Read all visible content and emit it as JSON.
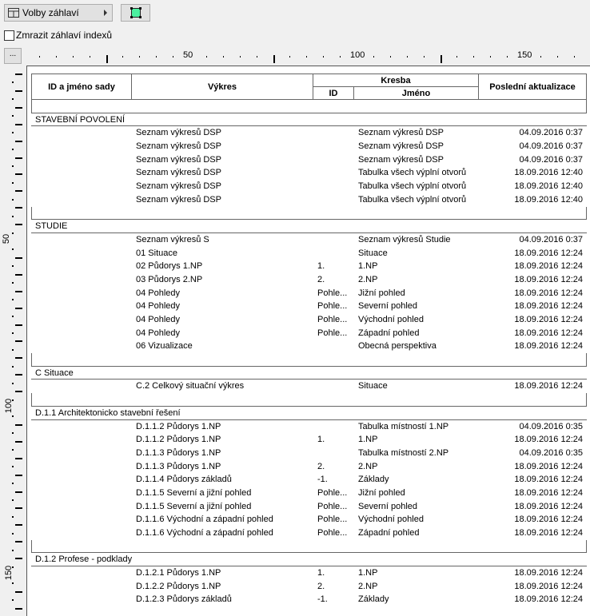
{
  "toolbar": {
    "options_label": "Volby záhlaví",
    "freeze_label": "Zmrazit záhlaví indexů",
    "freeze_checked": false,
    "more_label": "..."
  },
  "ruler": {
    "h_labels": [
      "50",
      "100",
      "150"
    ],
    "v_labels": [
      "50",
      "100",
      "150"
    ]
  },
  "header": {
    "set": "ID a jméno sady",
    "drawing": "Výkres",
    "layout": "Kresba",
    "layout_id": "ID",
    "layout_name": "Jméno",
    "updated": "Poslední aktualizace"
  },
  "sections": [
    {
      "title": "STAVEBNÍ POVOLENÍ",
      "rows": [
        [
          "Seznam výkresů DSP",
          "",
          "Seznam výkresů DSP",
          "04.09.2016 0:37"
        ],
        [
          "Seznam výkresů DSP",
          "",
          "Seznam výkresů DSP",
          "04.09.2016 0:37"
        ],
        [
          "Seznam výkresů DSP",
          "",
          "Seznam výkresů DSP",
          "04.09.2016 0:37"
        ],
        [
          "Seznam výkresů DSP",
          "",
          "Tabulka všech výplní otvorů",
          "18.09.2016 12:40"
        ],
        [
          "Seznam výkresů DSP",
          "",
          "Tabulka všech výplní otvorů",
          "18.09.2016 12:40"
        ],
        [
          "Seznam výkresů DSP",
          "",
          "Tabulka všech výplní otvorů",
          "18.09.2016 12:40"
        ]
      ]
    },
    {
      "title": "STUDIE",
      "rows": [
        [
          "Seznam výkresů S",
          "",
          "Seznam výkresů Studie",
          "04.09.2016 0:37"
        ],
        [
          "01 Situace",
          "",
          "Situace",
          "18.09.2016 12:24"
        ],
        [
          "02 Půdorys 1.NP",
          "1.",
          "1.NP",
          "18.09.2016 12:24"
        ],
        [
          "03 Půdorys 2.NP",
          "2.",
          "2.NP",
          "18.09.2016 12:24"
        ],
        [
          "04 Pohledy",
          "Pohle...",
          "Jižní pohled",
          "18.09.2016 12:24"
        ],
        [
          "04 Pohledy",
          "Pohle...",
          "Severní pohled",
          "18.09.2016 12:24"
        ],
        [
          "04 Pohledy",
          "Pohle...",
          "Východní pohled",
          "18.09.2016 12:24"
        ],
        [
          "04 Pohledy",
          "Pohle...",
          "Západní pohled",
          "18.09.2016 12:24"
        ],
        [
          "06 Vizualizace",
          "",
          "Obecná perspektiva",
          "18.09.2016 12:24"
        ]
      ]
    },
    {
      "title": "C Situace",
      "rows": [
        [
          "C.2 Celkový situační výkres",
          "",
          "Situace",
          "18.09.2016 12:24"
        ]
      ]
    },
    {
      "title": "D.1.1 Architektonicko stavební řešení",
      "rows": [
        [
          "D.1.1.2 Půdorys 1.NP",
          "",
          "Tabulka místností 1.NP",
          "04.09.2016 0:35"
        ],
        [
          "D.1.1.2 Půdorys 1.NP",
          "1.",
          "1.NP",
          "18.09.2016 12:24"
        ],
        [
          "D.1.1.3 Půdorys 1.NP",
          "",
          "Tabulka místností 2.NP",
          "04.09.2016 0:35"
        ],
        [
          "D.1.1.3 Půdorys 1.NP",
          "2.",
          "2.NP",
          "18.09.2016 12:24"
        ],
        [
          "D.1.1.4 Půdorys základů",
          "-1.",
          "Základy",
          "18.09.2016 12:24"
        ],
        [
          "D.1.1.5 Severní a jižní pohled",
          "Pohle...",
          "Jižní pohled",
          "18.09.2016 12:24"
        ],
        [
          "D.1.1.5 Severní a jižní pohled",
          "Pohle...",
          "Severní pohled",
          "18.09.2016 12:24"
        ],
        [
          "D.1.1.6 Východní a západní pohled",
          "Pohle...",
          "Východní pohled",
          "18.09.2016 12:24"
        ],
        [
          "D.1.1.6 Východní a západní pohled",
          "Pohle...",
          "Západní pohled",
          "18.09.2016 12:24"
        ]
      ]
    },
    {
      "title": "D.1.2 Profese - podklady",
      "rows": [
        [
          "D.1.2.1 Půdorys 1.NP",
          "1.",
          "1.NP",
          "18.09.2016 12:24"
        ],
        [
          "D.1.2.2 Půdorys 1.NP",
          "2.",
          "2.NP",
          "18.09.2016 12:24"
        ],
        [
          "D.1.2.3 Půdorys základů",
          "-1.",
          "Základy",
          "18.09.2016 12:24"
        ]
      ]
    }
  ]
}
